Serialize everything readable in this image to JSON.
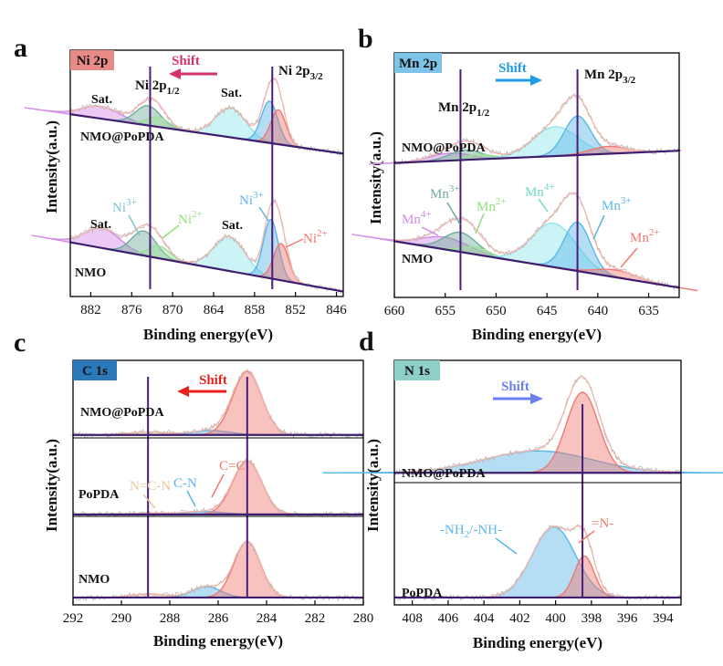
{
  "chart_data": [
    {
      "type": "line",
      "panel_letter": "a",
      "title": "Ni 2p",
      "title_color": "#e88a86",
      "xlabel": "Binding energy(eV)",
      "ylabel": "Intensity(a.u.)",
      "xlim": [
        885,
        845
      ],
      "ylim": [
        0,
        1
      ],
      "xticks": [
        "882",
        "876",
        "870",
        "864",
        "858",
        "852",
        "846"
      ],
      "xtick_values": [
        882,
        876,
        870,
        864,
        858,
        852,
        846
      ],
      "shift": {
        "label": "Shift",
        "direction": "left",
        "color": "#d6336c"
      },
      "vlines": [
        873.3,
        855.4
      ],
      "vline_labels": [
        {
          "base": "Ni 2p",
          "sub": "1/2",
          "x": 873.3
        },
        {
          "base": "Ni 2p",
          "sub": "3/2",
          "x": 855.4
        }
      ],
      "series": [
        {
          "name": "NMO@PoPDA",
          "baseline": [
            0.74,
            0.58
          ],
          "peaks": [
            {
              "center": 880.5,
              "height": 0.05,
              "width": 2.8,
              "color": "#d48ae8",
              "label": "Sat."
            },
            {
              "center": 873.6,
              "height": 0.08,
              "width": 1.8,
              "color": "#6fae9c"
            },
            {
              "center": 872.2,
              "height": 0.04,
              "width": 1.6,
              "color": "#9fe09a"
            },
            {
              "center": 861.5,
              "height": 0.12,
              "width": 2.2,
              "color": "#8fe6ec",
              "label": "Sat."
            },
            {
              "center": 855.8,
              "height": 0.17,
              "width": 1.2,
              "color": "#5bb6e8"
            },
            {
              "center": 854.5,
              "height": 0.14,
              "width": 1.1,
              "color": "#f07870"
            }
          ]
        },
        {
          "name": "NMO",
          "baseline": [
            0.22,
            0.02
          ],
          "peaks": [
            {
              "center": 880.3,
              "height": 0.08,
              "width": 2.6,
              "color": "#d48ae8",
              "label": "Sat."
            },
            {
              "center": 874.2,
              "height": 0.1,
              "width": 1.8,
              "color": "#6fae9c"
            },
            {
              "center": 872.0,
              "height": 0.05,
              "width": 1.6,
              "color": "#9fe09a"
            },
            {
              "center": 861.7,
              "height": 0.14,
              "width": 2.3,
              "color": "#8fe6ec",
              "label": "Sat."
            },
            {
              "center": 855.6,
              "height": 0.24,
              "width": 1.1,
              "color": "#5bb6e8"
            },
            {
              "center": 854.1,
              "height": 0.15,
              "width": 1.1,
              "color": "#f07870"
            }
          ]
        }
      ],
      "annotations": [
        {
          "base": "Ni",
          "sup": "3+",
          "color": "#7ec3d6"
        },
        {
          "base": "Ni",
          "sup": "2+",
          "color": "#90e07c"
        },
        {
          "base": "Ni",
          "sup": "3+",
          "color": "#5bb6e8"
        },
        {
          "base": "Ni",
          "sup": "2+",
          "color": "#f07870"
        }
      ]
    },
    {
      "type": "line",
      "panel_letter": "b",
      "title": "Mn 2p",
      "title_color": "#7ec3e8",
      "xlabel": "Binding energy(eV)",
      "ylabel": "Intensity(a.u.)",
      "xlim": [
        660,
        632
      ],
      "ylim": [
        0,
        1
      ],
      "xticks": [
        "660",
        "655",
        "650",
        "645",
        "640",
        "635"
      ],
      "xtick_values": [
        660,
        655,
        650,
        645,
        640,
        635
      ],
      "shift": {
        "label": "Shift",
        "direction": "right",
        "color": "#1e9de6"
      },
      "vlines": [
        653.5,
        642.0
      ],
      "vline_labels": [
        {
          "base": "Mn 2p",
          "sub": "1/2",
          "x": 653.5
        },
        {
          "base": "Mn 2p",
          "sub": "3/2",
          "x": 642.0
        }
      ],
      "series": [
        {
          "name": "NMO@PoPDA",
          "baseline": [
            0.55,
            0.6
          ],
          "peaks": [
            {
              "center": 654.5,
              "height": 0.03,
              "width": 2.0,
              "color": "#d48ae8"
            },
            {
              "center": 653.0,
              "height": 0.04,
              "width": 1.6,
              "color": "#6fae9c"
            },
            {
              "center": 651.8,
              "height": 0.02,
              "width": 1.5,
              "color": "#9fe09a"
            },
            {
              "center": 644.2,
              "height": 0.12,
              "width": 2.2,
              "color": "#8fe6ec"
            },
            {
              "center": 642.0,
              "height": 0.16,
              "width": 1.3,
              "color": "#5bb6e8"
            },
            {
              "center": 639.0,
              "height": 0.03,
              "width": 1.8,
              "color": "#f07870"
            }
          ]
        },
        {
          "name": "NMO",
          "baseline": [
            0.23,
            0.04
          ],
          "peaks": [
            {
              "center": 655.0,
              "height": 0.05,
              "width": 2.3,
              "color": "#d48ae8"
            },
            {
              "center": 653.5,
              "height": 0.08,
              "width": 1.6,
              "color": "#6fae9c"
            },
            {
              "center": 652.0,
              "height": 0.03,
              "width": 1.4,
              "color": "#9fe09a"
            },
            {
              "center": 644.3,
              "height": 0.18,
              "width": 2.2,
              "color": "#8fe6ec"
            },
            {
              "center": 642.0,
              "height": 0.2,
              "width": 1.3,
              "color": "#5bb6e8"
            },
            {
              "center": 638.2,
              "height": 0.03,
              "width": 2.0,
              "color": "#f07870"
            }
          ]
        }
      ],
      "annotations": [
        {
          "base": "Mn",
          "sup": "4+",
          "color": "#d48ae8"
        },
        {
          "base": "Mn",
          "sup": "3+",
          "color": "#6fae9c"
        },
        {
          "base": "Mn",
          "sup": "2+",
          "color": "#90e07c"
        },
        {
          "base": "Mn",
          "sup": "4+",
          "color": "#6fd9c8"
        },
        {
          "base": "Mn",
          "sup": "3+",
          "color": "#5bb6e8"
        },
        {
          "base": "Mn",
          "sup": "2+",
          "color": "#f07870"
        }
      ]
    },
    {
      "type": "line",
      "panel_letter": "c",
      "title": "C 1s",
      "title_color": "#2b79b8",
      "xlabel": "Binding energy(eV)",
      "ylabel": "Intensity(a.u.)",
      "xlim": [
        292,
        280
      ],
      "ylim": [
        0,
        1
      ],
      "xticks": [
        "292",
        "290",
        "288",
        "286",
        "284",
        "282",
        "280"
      ],
      "xtick_values": [
        292,
        290,
        288,
        286,
        284,
        282,
        280
      ],
      "shift": {
        "label": "Shift",
        "direction": "left",
        "color": "#e8211b"
      },
      "vlines": [
        288.9,
        284.8
      ],
      "series": [
        {
          "name": "NMO@PoPDA",
          "baseline": [
            0.695,
            0.695
          ],
          "peaks": [
            {
              "center": 288.9,
              "height": 0.012,
              "width": 0.8,
              "color": "#e8c89a"
            },
            {
              "center": 286.3,
              "height": 0.018,
              "width": 0.8,
              "color": "#5bb6e8"
            },
            {
              "center": 284.8,
              "height": 0.26,
              "width": 0.6,
              "color": "#f07870"
            }
          ]
        },
        {
          "name": "PoPDA",
          "baseline": [
            0.37,
            0.37
          ],
          "peaks": [
            {
              "center": 288.8,
              "height": 0.005,
              "width": 0.8,
              "color": "#e8c89a"
            },
            {
              "center": 286.6,
              "height": 0.012,
              "width": 0.8,
              "color": "#5bb6e8"
            },
            {
              "center": 284.8,
              "height": 0.22,
              "width": 0.6,
              "color": "#f07870"
            }
          ]
        },
        {
          "name": "NMO",
          "baseline": [
            0.03,
            0.03
          ],
          "peaks": [
            {
              "center": 288.9,
              "height": 0.015,
              "width": 0.7,
              "color": "#e8c89a"
            },
            {
              "center": 286.5,
              "height": 0.045,
              "width": 0.6,
              "color": "#5bb6e8"
            },
            {
              "center": 284.8,
              "height": 0.23,
              "width": 0.55,
              "color": "#f07870"
            }
          ]
        }
      ],
      "labels": [
        {
          "text": "C=C",
          "color": "#f07870"
        },
        {
          "text": "N=C-N",
          "color": "#e8c89a"
        },
        {
          "text": "C-N",
          "color": "#5bb6e8"
        }
      ]
    },
    {
      "type": "line",
      "panel_letter": "d",
      "title": "N 1s",
      "title_color": "#8ecfc9",
      "xlabel": "Binding energy(eV)",
      "ylabel": "Intensity(a.u.)",
      "xlim": [
        409,
        393
      ],
      "ylim": [
        0,
        1
      ],
      "xticks": [
        "408",
        "406",
        "404",
        "402",
        "400",
        "398",
        "396",
        "394"
      ],
      "xtick_values": [
        408,
        406,
        404,
        402,
        400,
        398,
        396,
        394
      ],
      "shift": {
        "label": "Shift",
        "direction": "right",
        "color": "#6b7ff0"
      },
      "vlines": [
        398.5
      ],
      "series": [
        {
          "name": "NMO@PoPDA",
          "baseline": [
            0.54,
            0.54
          ],
          "peaks": [
            {
              "center": 401.0,
              "height": 0.09,
              "width": 3.0,
              "color": "#5bb6e8"
            },
            {
              "center": 398.5,
              "height": 0.33,
              "width": 0.9,
              "color": "#f07870"
            }
          ]
        },
        {
          "name": "PoPDA",
          "baseline": [
            0.03,
            0.03
          ],
          "peaks": [
            {
              "center": 400.1,
              "height": 0.29,
              "width": 1.2,
              "color": "#5bb6e8"
            },
            {
              "center": 398.4,
              "height": 0.17,
              "width": 0.55,
              "color": "#f07870"
            }
          ]
        }
      ],
      "labels": [
        {
          "base": "-NH",
          "sub": "2",
          "rest": "/-NH-",
          "color": "#5bb6e8"
        },
        {
          "text": "=N-",
          "color": "#f07870"
        }
      ]
    }
  ]
}
